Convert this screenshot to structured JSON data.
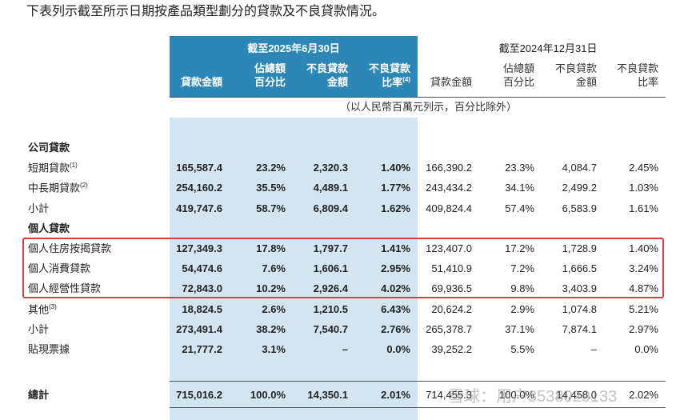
{
  "header": {
    "title": "下表列示截至所示日期按產品類型劃分的貸款及不良貸款情況。"
  },
  "table": {
    "groups": [
      "截至2025年6月30日",
      "截至2024年12月31日"
    ],
    "columns": [
      {
        "lines": [
          "貸款金額"
        ]
      },
      {
        "lines": [
          "佔總額",
          "百分比"
        ]
      },
      {
        "lines": [
          "不良貸款",
          "金額"
        ]
      },
      {
        "lines": [
          "不良貸款",
          "比率"
        ],
        "note": "(4)"
      },
      {
        "lines": [
          "貸款金額"
        ]
      },
      {
        "lines": [
          "佔總額",
          "百分比"
        ]
      },
      {
        "lines": [
          "不良貸款",
          "金額"
        ]
      },
      {
        "lines": [
          "不良貸款",
          "比率"
        ]
      }
    ],
    "unit_note": "（以人民幣百萬元列示，百分比除外）",
    "rows": [
      {
        "label": "公司貸款"
      },
      {
        "label": "短期貸款",
        "note": "(1)",
        "values": [
          "165,587.4",
          "23.2%",
          "2,320.3",
          "1.40%",
          "166,390.2",
          "23.3%",
          "4,084.7",
          "2.45%"
        ]
      },
      {
        "label": "中長期貸款",
        "note": "(2)",
        "values": [
          "254,160.2",
          "35.5%",
          "4,489.1",
          "1.77%",
          "243,434.2",
          "34.1%",
          "2,499.2",
          "1.03%"
        ]
      },
      {
        "label": "小計",
        "values": [
          "419,747.6",
          "58.7%",
          "6,809.4",
          "1.62%",
          "409,824.4",
          "57.4%",
          "6,583.9",
          "1.61%"
        ]
      },
      {
        "label": "個人貸款"
      },
      {
        "label": "個人住房按揭貸款",
        "values": [
          "127,349.3",
          "17.8%",
          "1,797.7",
          "1.41%",
          "123,407.0",
          "17.2%",
          "1,728.9",
          "1.40%"
        ]
      },
      {
        "label": "個人消費貸款",
        "values": [
          "54,474.6",
          "7.6%",
          "1,606.1",
          "2.95%",
          "51,410.9",
          "7.2%",
          "1,666.5",
          "3.24%"
        ]
      },
      {
        "label": "個人經營性貸款",
        "values": [
          "72,843.0",
          "10.2%",
          "2,926.4",
          "4.02%",
          "69,936.5",
          "9.8%",
          "3,403.9",
          "4.87%"
        ]
      },
      {
        "label": "其他",
        "note": "(3)",
        "values": [
          "18,824.5",
          "2.6%",
          "1,210.5",
          "6.43%",
          "20,624.2",
          "2.9%",
          "1,074.8",
          "5.21%"
        ]
      },
      {
        "label": "小計",
        "values": [
          "273,491.4",
          "38.2%",
          "7,540.7",
          "2.76%",
          "265,378.7",
          "37.1%",
          "7,874.1",
          "2.97%"
        ]
      },
      {
        "label": "貼現票據",
        "values": [
          "21,777.2",
          "3.1%",
          "–",
          "0.0%",
          "39,252.2",
          "5.5%",
          "–",
          "0.0%"
        ]
      },
      {
        "label": "總計",
        "values": [
          "715,016.2",
          "100.0%",
          "14,350.1",
          "2.01%",
          "714,455.3",
          "100.0%",
          "14,458.0",
          "2.02%"
        ]
      }
    ]
  },
  "watermark": "雪球：用户3538029133"
}
